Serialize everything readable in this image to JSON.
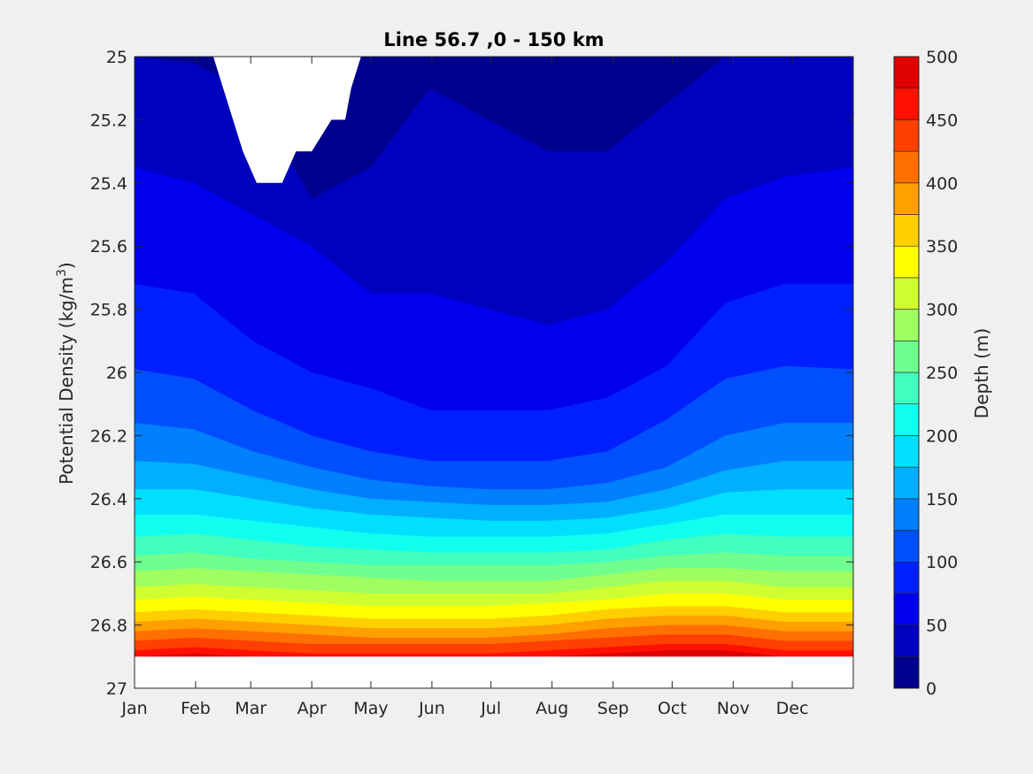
{
  "chart_data": {
    "type": "heatmap",
    "subtype": "filled-contour",
    "title": "Line 56.7 ,0 - 150 km",
    "xlabel": "",
    "ylabel": "Potential Density (kg/m",
    "ylabel_sup": "3",
    "ylabel_close": ")",
    "x_categories": [
      "Jan",
      "Feb",
      "Mar",
      "Apr",
      "May",
      "Jun",
      "Jul",
      "Aug",
      "Sep",
      "Oct",
      "Nov",
      "Dec"
    ],
    "x_tick_labels": [
      "Jan",
      "Feb",
      "Mar",
      "Apr",
      "May",
      "Jun",
      "Jul",
      "Aug",
      "Sep",
      "Oct",
      "Nov",
      "Dec"
    ],
    "x_tick_days": [
      0,
      31,
      59,
      90,
      120,
      151,
      181,
      212,
      243,
      273,
      304,
      334
    ],
    "xlim_days": [
      0,
      365
    ],
    "ylim": [
      25,
      27
    ],
    "y_reversed": true,
    "y_tick_values": [
      25,
      25.2,
      25.4,
      25.6,
      25.8,
      26,
      26.2,
      26.4,
      26.6,
      26.8,
      27
    ],
    "y_tick_labels": [
      "25",
      "25.2",
      "25.4",
      "25.6",
      "25.8",
      "26",
      "26.2",
      "26.4",
      "26.6",
      "26.8",
      "27"
    ],
    "colorbar": {
      "label": "Depth (m)",
      "range": [
        0,
        500
      ],
      "level_step": 25,
      "tick_values": [
        0,
        50,
        100,
        150,
        200,
        250,
        300,
        350,
        400,
        450,
        500
      ],
      "tick_labels": [
        "0",
        "50",
        "100",
        "150",
        "200",
        "250",
        "300",
        "350",
        "400",
        "450",
        "500"
      ],
      "colors": [
        "#00008f",
        "#0000bf",
        "#0000ef",
        "#001fff",
        "#004fff",
        "#007fff",
        "#00afff",
        "#00dfff",
        "#10ffef",
        "#40ffbf",
        "#70ff8f",
        "#9fff60",
        "#cfff30",
        "#ffff00",
        "#ffcf00",
        "#ff9f00",
        "#ff7000",
        "#ff4000",
        "#ff1000",
        "#df0000",
        "#af0000"
      ]
    },
    "contour_boundaries": [
      {
        "depth": 25,
        "day": [
          0,
          30,
          60,
          90,
          120,
          150,
          180,
          210,
          240,
          270,
          300,
          330,
          365
        ],
        "density": [
          25.0,
          25.02,
          25.12,
          25.45,
          25.35,
          25.1,
          25.2,
          25.3,
          25.3,
          25.15,
          25.0,
          25.0,
          25.0
        ]
      },
      {
        "depth": 50,
        "day": [
          0,
          30,
          60,
          90,
          120,
          150,
          180,
          210,
          240,
          270,
          300,
          330,
          365
        ],
        "density": [
          25.35,
          25.4,
          25.5,
          25.6,
          25.75,
          25.75,
          25.8,
          25.85,
          25.8,
          25.65,
          25.45,
          25.38,
          25.35
        ]
      },
      {
        "depth": 75,
        "day": [
          0,
          30,
          60,
          90,
          120,
          150,
          180,
          210,
          240,
          270,
          300,
          330,
          365
        ],
        "density": [
          25.72,
          25.75,
          25.9,
          26.0,
          26.05,
          26.12,
          26.12,
          26.12,
          26.08,
          25.98,
          25.78,
          25.72,
          25.72
        ]
      },
      {
        "depth": 100,
        "day": [
          0,
          30,
          60,
          90,
          120,
          150,
          180,
          210,
          240,
          270,
          300,
          330,
          365
        ],
        "density": [
          25.99,
          26.02,
          26.12,
          26.2,
          26.25,
          26.28,
          26.28,
          26.28,
          26.25,
          26.15,
          26.02,
          25.98,
          25.99
        ]
      },
      {
        "depth": 125,
        "day": [
          0,
          30,
          60,
          90,
          120,
          150,
          180,
          210,
          240,
          270,
          300,
          330,
          365
        ],
        "density": [
          26.16,
          26.18,
          26.25,
          26.3,
          26.34,
          26.36,
          26.37,
          26.37,
          26.35,
          26.3,
          26.2,
          26.16,
          26.16
        ]
      },
      {
        "depth": 150,
        "day": [
          0,
          30,
          60,
          90,
          120,
          150,
          180,
          210,
          240,
          270,
          300,
          330,
          365
        ],
        "density": [
          26.28,
          26.29,
          26.33,
          26.37,
          26.4,
          26.41,
          26.42,
          26.42,
          26.41,
          26.37,
          26.31,
          26.28,
          26.28
        ]
      },
      {
        "depth": 175,
        "day": [
          0,
          30,
          60,
          90,
          120,
          150,
          180,
          210,
          240,
          270,
          300,
          330,
          365
        ],
        "density": [
          26.37,
          26.37,
          26.4,
          26.43,
          26.45,
          26.46,
          26.47,
          26.47,
          26.46,
          26.43,
          26.38,
          26.37,
          26.37
        ]
      },
      {
        "depth": 200,
        "day": [
          0,
          30,
          60,
          90,
          120,
          150,
          180,
          210,
          240,
          270,
          300,
          330,
          365
        ],
        "density": [
          26.45,
          26.45,
          26.47,
          26.49,
          26.51,
          26.52,
          26.52,
          26.52,
          26.51,
          26.48,
          26.45,
          26.45,
          26.45
        ]
      },
      {
        "depth": 225,
        "day": [
          0,
          30,
          60,
          90,
          120,
          150,
          180,
          210,
          240,
          270,
          300,
          330,
          365
        ],
        "density": [
          26.52,
          26.51,
          26.53,
          26.55,
          26.56,
          26.57,
          26.57,
          26.57,
          26.56,
          26.53,
          26.51,
          26.52,
          26.52
        ]
      },
      {
        "depth": 250,
        "day": [
          0,
          30,
          60,
          90,
          120,
          150,
          180,
          210,
          240,
          270,
          300,
          330,
          365
        ],
        "density": [
          26.58,
          26.57,
          26.59,
          26.6,
          26.61,
          26.61,
          26.61,
          26.61,
          26.6,
          26.58,
          26.57,
          26.58,
          26.58
        ]
      },
      {
        "depth": 275,
        "day": [
          0,
          30,
          60,
          90,
          120,
          150,
          180,
          210,
          240,
          270,
          300,
          330,
          365
        ],
        "density": [
          26.63,
          26.62,
          26.63,
          26.64,
          26.65,
          26.66,
          26.66,
          26.66,
          26.64,
          26.62,
          26.62,
          26.63,
          26.63
        ]
      },
      {
        "depth": 300,
        "day": [
          0,
          30,
          60,
          90,
          120,
          150,
          180,
          210,
          240,
          270,
          300,
          330,
          365
        ],
        "density": [
          26.68,
          26.67,
          26.68,
          26.69,
          26.7,
          26.7,
          26.7,
          26.7,
          26.68,
          26.66,
          26.66,
          26.68,
          26.68
        ]
      },
      {
        "depth": 325,
        "day": [
          0,
          30,
          60,
          90,
          120,
          150,
          180,
          210,
          240,
          270,
          300,
          330,
          365
        ],
        "density": [
          26.72,
          26.71,
          26.72,
          26.73,
          26.74,
          26.74,
          26.74,
          26.73,
          26.72,
          26.7,
          26.7,
          26.72,
          26.72
        ]
      },
      {
        "depth": 350,
        "day": [
          0,
          30,
          60,
          90,
          120,
          150,
          180,
          210,
          240,
          270,
          300,
          330,
          365
        ],
        "density": [
          26.76,
          26.75,
          26.76,
          26.77,
          26.78,
          26.78,
          26.78,
          26.77,
          26.75,
          26.74,
          26.74,
          26.76,
          26.76
        ]
      },
      {
        "depth": 375,
        "day": [
          0,
          30,
          60,
          90,
          120,
          150,
          180,
          210,
          240,
          270,
          300,
          330,
          365
        ],
        "density": [
          26.79,
          26.78,
          26.79,
          26.8,
          26.81,
          26.81,
          26.81,
          26.8,
          26.78,
          26.77,
          26.77,
          26.79,
          26.79
        ]
      },
      {
        "depth": 400,
        "day": [
          0,
          30,
          60,
          90,
          120,
          150,
          180,
          210,
          240,
          270,
          300,
          330,
          365
        ],
        "density": [
          26.82,
          26.81,
          26.82,
          26.83,
          26.84,
          26.84,
          26.84,
          26.83,
          26.81,
          26.8,
          26.8,
          26.82,
          26.82
        ]
      },
      {
        "depth": 425,
        "day": [
          0,
          30,
          60,
          90,
          120,
          150,
          180,
          210,
          240,
          270,
          300,
          330,
          365
        ],
        "density": [
          26.85,
          26.84,
          26.85,
          26.86,
          26.86,
          26.86,
          26.86,
          26.85,
          26.84,
          26.83,
          26.83,
          26.85,
          26.85
        ]
      },
      {
        "depth": 450,
        "day": [
          0,
          30,
          60,
          90,
          120,
          150,
          180,
          210,
          240,
          270,
          300,
          330,
          365
        ],
        "density": [
          26.88,
          26.87,
          26.88,
          26.89,
          26.89,
          26.89,
          26.89,
          26.88,
          26.87,
          26.86,
          26.86,
          26.88,
          26.88
        ]
      },
      {
        "depth": 475,
        "day": [
          0,
          30,
          60,
          90,
          120,
          150,
          180,
          210,
          240,
          270,
          300,
          330,
          365
        ],
        "density": [
          26.9,
          26.89,
          26.9,
          26.9,
          26.9,
          26.9,
          26.9,
          26.9,
          26.89,
          26.88,
          26.88,
          26.9,
          26.9
        ]
      }
    ],
    "data_floor_density": 26.9,
    "missing_data_region": {
      "day": [
        40,
        45,
        55,
        62,
        75,
        82,
        90,
        100,
        107,
        110,
        115,
        126
      ],
      "density": [
        25.0,
        25.1,
        25.3,
        25.4,
        25.4,
        25.3,
        25.3,
        25.2,
        25.2,
        25.1,
        25.0,
        25.0
      ]
    }
  }
}
